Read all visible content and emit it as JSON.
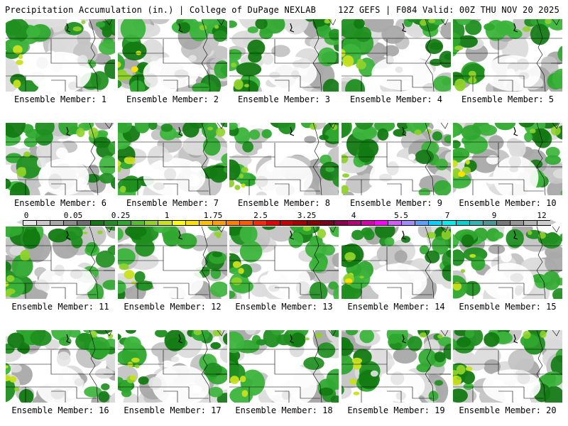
{
  "header": {
    "title": "Precipitation Accumulation (in.) | College of DuPage NEXLAB",
    "valid": "12Z GEFS | F084 Valid: 00Z THU NOV 20 2025"
  },
  "members": [
    {
      "label": "Ensemble Member: 1"
    },
    {
      "label": "Ensemble Member: 2"
    },
    {
      "label": "Ensemble Member: 3"
    },
    {
      "label": "Ensemble Member: 4"
    },
    {
      "label": "Ensemble Member: 5"
    },
    {
      "label": "Ensemble Member: 6"
    },
    {
      "label": "Ensemble Member: 7"
    },
    {
      "label": "Ensemble Member: 8"
    },
    {
      "label": "Ensemble Member: 9"
    },
    {
      "label": "Ensemble Member: 10"
    },
    {
      "label": "Ensemble Member: 11"
    },
    {
      "label": "Ensemble Member: 12"
    },
    {
      "label": "Ensemble Member: 13"
    },
    {
      "label": "Ensemble Member: 14"
    },
    {
      "label": "Ensemble Member: 15"
    },
    {
      "label": "Ensemble Member: 16"
    },
    {
      "label": "Ensemble Member: 17"
    },
    {
      "label": "Ensemble Member: 18"
    },
    {
      "label": "Ensemble Member: 19"
    },
    {
      "label": "Ensemble Member: 20"
    }
  ],
  "legend": {
    "labels": [
      "0",
      "0.05",
      "0.25",
      "1",
      "1.75",
      "2.5",
      "3.25",
      "4",
      "5.5",
      "7",
      "9",
      "12"
    ],
    "colors": [
      "#e6e6e6",
      "#c8c8c8",
      "#a8a8a8",
      "#8c8c8c",
      "#6e6e6e",
      "#127a12",
      "#1f8f1f",
      "#2fa82f",
      "#52bf2a",
      "#8fd22a",
      "#c8e01e",
      "#ffff00",
      "#ffe000",
      "#ffc000",
      "#ffa000",
      "#ff8000",
      "#ff5a00",
      "#ff2a00",
      "#e60000",
      "#c80000",
      "#a80000",
      "#8a0000",
      "#780020",
      "#8c0050",
      "#b4007a",
      "#dc00b4",
      "#ff00ff",
      "#d25aff",
      "#a08cff",
      "#5aa0ff",
      "#00d2ff",
      "#00f0f0",
      "#00d2d2",
      "#30b4b4",
      "#4c9696",
      "#787878",
      "#969696",
      "#b4b4b4",
      "#cccccc"
    ]
  }
}
